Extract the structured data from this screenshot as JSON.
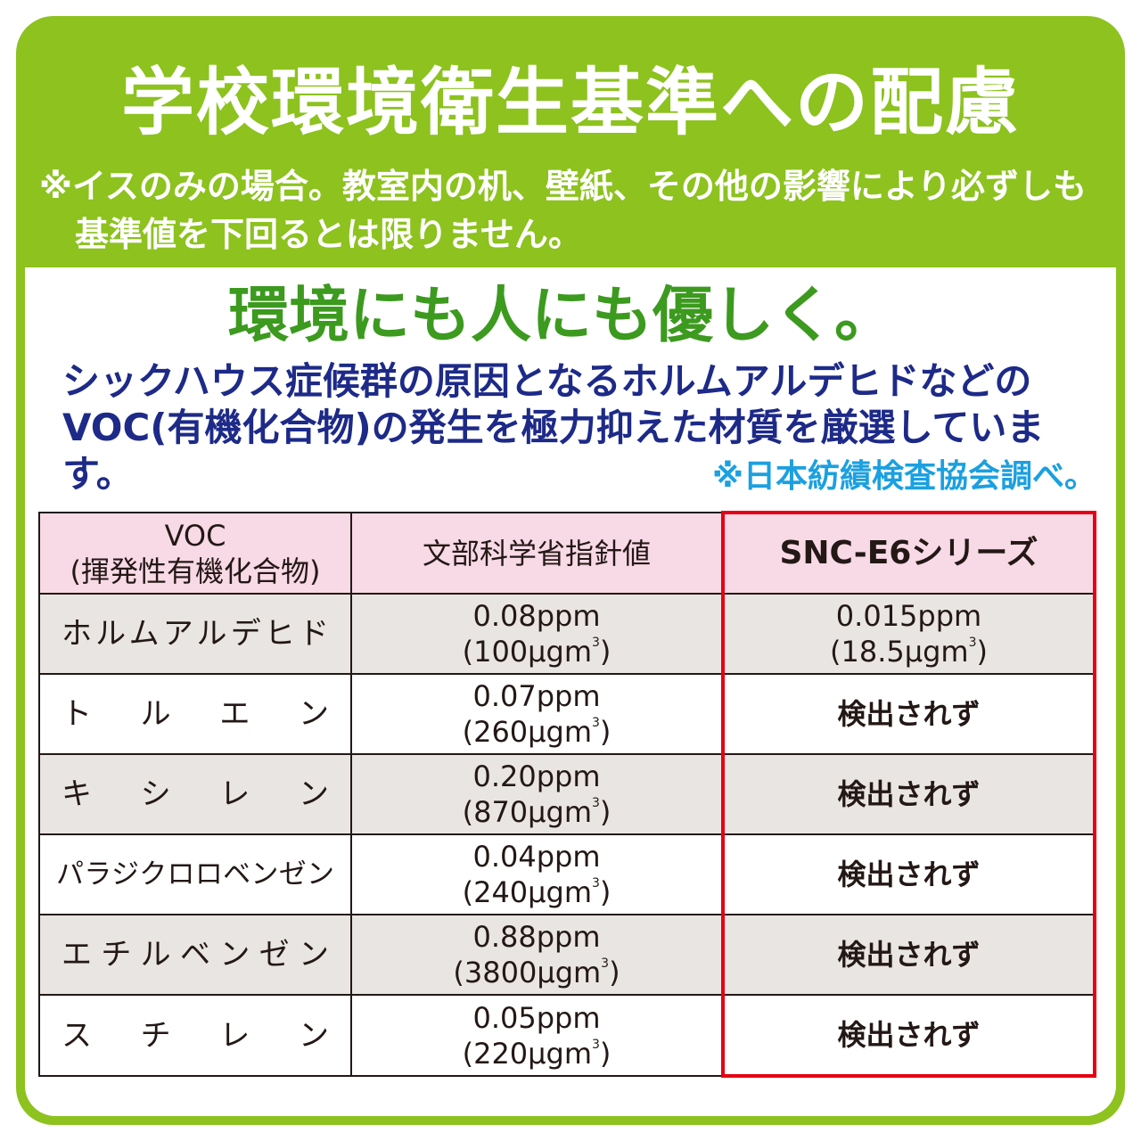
{
  "header": {
    "title": "学校環境衛生基準への配慮",
    "note_mark": "※",
    "note": "イスのみの場合。教室内の机、壁紙、その他の影響により必ずしも基準値を下回るとは限りません。"
  },
  "main": {
    "headline": "環境にも人にも優しく。",
    "description": "シックハウス症候群の原因となるホルムアルデヒドなどのVOC(有機化合物)の発生を極力抑えた材質を厳選しています。",
    "source": "※日本紡績検査協会調べ。"
  },
  "table": {
    "headers": {
      "voc_line1": "VOC",
      "voc_line2": "(揮発性有機化合物)",
      "standard": "文部科学省指針値",
      "product": "SNC-E6シリーズ"
    },
    "rows": [
      {
        "name": "ホルムアルデヒド",
        "ppm": "0.08ppm",
        "ug": "(100μgm",
        "product_ppm": "0.015ppm",
        "product_ug": "(18.5μgm"
      },
      {
        "name": "ト　ル　エ　ン",
        "ppm": "0.07ppm",
        "ug": "(260μgm",
        "product": "検出されず"
      },
      {
        "name": "キ　シ　レ　ン",
        "ppm": "0.20ppm",
        "ug": "(870μgm",
        "product": "検出されず"
      },
      {
        "name": "パラジクロロベンゼン",
        "ppm": "0.04ppm",
        "ug": "(240μgm",
        "product": "検出されず"
      },
      {
        "name": "エチルベンゼン",
        "ppm": "0.88ppm",
        "ug": "(3800μgm",
        "product": "検出されず"
      },
      {
        "name": "ス　チ　レ　ン",
        "ppm": "0.05ppm",
        "ug": "(220μgm",
        "product": "検出されず"
      }
    ],
    "unit_sup": "3",
    "unit_close": ")"
  },
  "colors": {
    "green": "#8dc21f",
    "headline_green": "#3c9a1f",
    "navy": "#1d2a88",
    "cyan": "#1ba0e0",
    "highlight_red": "#e60012",
    "header_pink": "#f8d9e6",
    "row_gray": "#e9e5e3"
  }
}
